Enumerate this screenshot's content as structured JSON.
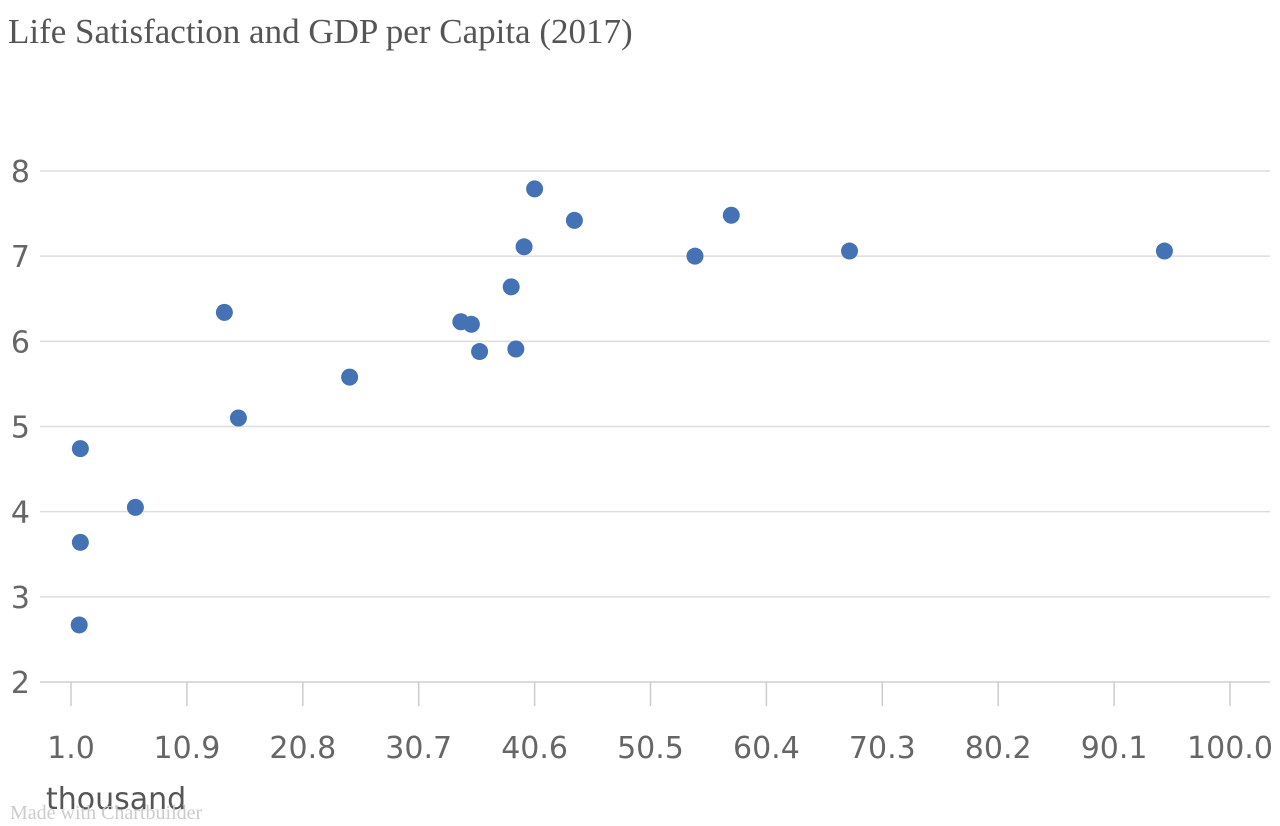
{
  "title": "Life Satisfaction and GDP per Capita (2017)",
  "credit": "Made with Chartbuilder",
  "chart_data": {
    "type": "scatter",
    "title": "Life Satisfaction and GDP per Capita (2017)",
    "xlabel": "",
    "ylabel": "",
    "x_unit_label": "thousand",
    "xlim": [
      1.0,
      100.0
    ],
    "ylim": [
      2,
      8
    ],
    "x_ticks": [
      1.0,
      10.9,
      20.8,
      30.7,
      40.6,
      50.5,
      60.4,
      70.3,
      80.2,
      90.1,
      100.0
    ],
    "x_tick_labels": [
      "1.0",
      "10.9",
      "20.8",
      "30.7",
      "40.6",
      "50.5",
      "60.4",
      "70.3",
      "80.2",
      "90.1",
      "100.0"
    ],
    "y_ticks": [
      2,
      3,
      4,
      5,
      6,
      7,
      8
    ],
    "y_tick_labels": [
      "2",
      "3",
      "4",
      "5",
      "6",
      "7",
      "8"
    ],
    "grid": "horizontal",
    "marker_color": "#4472b4",
    "points": [
      {
        "x": 1.8,
        "y": 4.74
      },
      {
        "x": 1.8,
        "y": 3.64
      },
      {
        "x": 1.7,
        "y": 2.67
      },
      {
        "x": 6.5,
        "y": 4.05
      },
      {
        "x": 14.1,
        "y": 6.34
      },
      {
        "x": 15.3,
        "y": 5.1
      },
      {
        "x": 24.8,
        "y": 5.58
      },
      {
        "x": 34.3,
        "y": 6.23
      },
      {
        "x": 35.2,
        "y": 6.2
      },
      {
        "x": 35.9,
        "y": 5.88
      },
      {
        "x": 38.6,
        "y": 6.64
      },
      {
        "x": 39.0,
        "y": 5.91
      },
      {
        "x": 39.7,
        "y": 7.11
      },
      {
        "x": 40.6,
        "y": 7.79
      },
      {
        "x": 44.0,
        "y": 7.42
      },
      {
        "x": 54.3,
        "y": 7.0
      },
      {
        "x": 57.4,
        "y": 7.48
      },
      {
        "x": 67.5,
        "y": 7.06
      },
      {
        "x": 94.4,
        "y": 7.06
      }
    ]
  }
}
